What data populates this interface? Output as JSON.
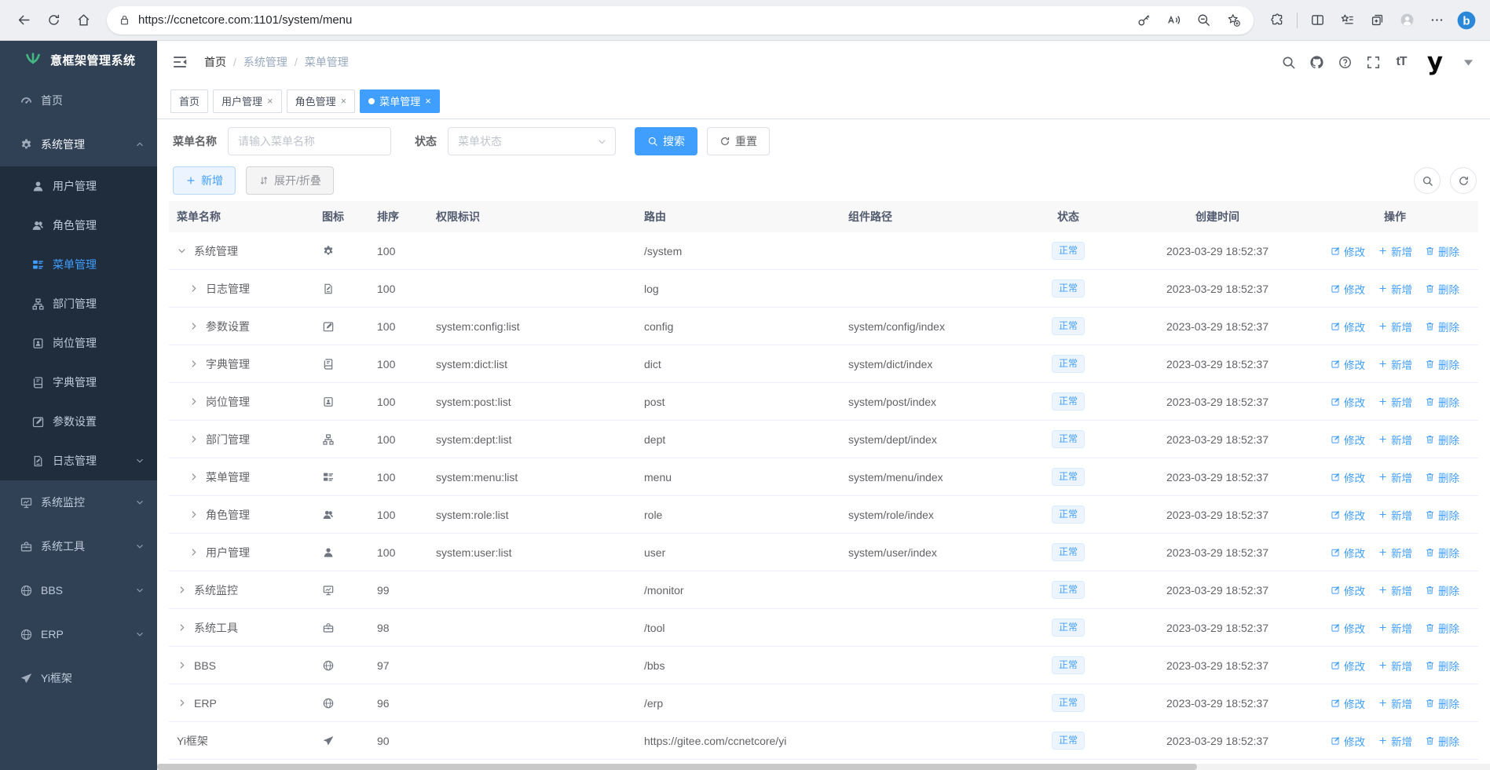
{
  "browser": {
    "url": "https://ccnetcore.com:1101/system/menu",
    "left_icons": [
      "back",
      "reload",
      "home"
    ],
    "address_icons": [
      "lock",
      "key",
      "read-aloud",
      "zoom-out",
      "add-favorite"
    ],
    "right_icons": [
      "extensions",
      "split-screen",
      "favorites",
      "collections",
      "profile",
      "more",
      "copilot"
    ]
  },
  "sidebar": {
    "logo_text": "意框架管理系统",
    "items": [
      {
        "label": "首页",
        "icon": "gauge"
      },
      {
        "label": "系统管理",
        "icon": "gear",
        "expanded": true,
        "chevron": "up",
        "children": [
          {
            "label": "用户管理",
            "icon": "user"
          },
          {
            "label": "角色管理",
            "icon": "users"
          },
          {
            "label": "菜单管理",
            "icon": "menu",
            "active": true
          },
          {
            "label": "部门管理",
            "icon": "tree"
          },
          {
            "label": "岗位管理",
            "icon": "badge"
          },
          {
            "label": "字典管理",
            "icon": "book"
          },
          {
            "label": "参数设置",
            "icon": "editsq"
          },
          {
            "label": "日志管理",
            "icon": "log",
            "chevron": "down"
          }
        ]
      },
      {
        "label": "系统监控",
        "icon": "monitor",
        "chevron": "down"
      },
      {
        "label": "系统工具",
        "icon": "toolbox",
        "chevron": "down"
      },
      {
        "label": "BBS",
        "icon": "globe",
        "chevron": "down"
      },
      {
        "label": "ERP",
        "icon": "globe",
        "chevron": "down"
      },
      {
        "label": "Yi框架",
        "icon": "send"
      }
    ]
  },
  "breadcrumb": [
    "首页",
    "系统管理",
    "菜单管理"
  ],
  "tabs": [
    {
      "label": "首页",
      "closable": false,
      "active": false
    },
    {
      "label": "用户管理",
      "closable": true,
      "active": false
    },
    {
      "label": "角色管理",
      "closable": true,
      "active": false
    },
    {
      "label": "菜单管理",
      "closable": true,
      "active": true
    }
  ],
  "filters": {
    "name_label": "菜单名称",
    "name_placeholder": "请输入菜单名称",
    "name_value": "",
    "status_label": "状态",
    "status_placeholder": "菜单状态",
    "search_label": "搜索",
    "reset_label": "重置"
  },
  "toolbar": {
    "add_label": "新增",
    "toggle_label": "展开/折叠"
  },
  "table": {
    "columns": [
      "菜单名称",
      "图标",
      "排序",
      "权限标识",
      "路由",
      "组件路径",
      "状态",
      "创建时间",
      "操作"
    ],
    "status_label": "正常",
    "actions": [
      "修改",
      "新增",
      "删除"
    ],
    "rows": [
      {
        "name": "系统管理",
        "icon": "gear",
        "level": 0,
        "arrow": "down",
        "order": "100",
        "perm": "",
        "route": "/system",
        "component": "",
        "time": "2023-03-29 18:52:37"
      },
      {
        "name": "日志管理",
        "icon": "log",
        "level": 1,
        "arrow": "right",
        "order": "100",
        "perm": "",
        "route": "log",
        "component": "",
        "time": "2023-03-29 18:52:37"
      },
      {
        "name": "参数设置",
        "icon": "editsq",
        "level": 1,
        "arrow": "right",
        "order": "100",
        "perm": "system:config:list",
        "route": "config",
        "component": "system/config/index",
        "time": "2023-03-29 18:52:37"
      },
      {
        "name": "字典管理",
        "icon": "book",
        "level": 1,
        "arrow": "right",
        "order": "100",
        "perm": "system:dict:list",
        "route": "dict",
        "component": "system/dict/index",
        "time": "2023-03-29 18:52:37"
      },
      {
        "name": "岗位管理",
        "icon": "badge",
        "level": 1,
        "arrow": "right",
        "order": "100",
        "perm": "system:post:list",
        "route": "post",
        "component": "system/post/index",
        "time": "2023-03-29 18:52:37"
      },
      {
        "name": "部门管理",
        "icon": "tree",
        "level": 1,
        "arrow": "right",
        "order": "100",
        "perm": "system:dept:list",
        "route": "dept",
        "component": "system/dept/index",
        "time": "2023-03-29 18:52:37"
      },
      {
        "name": "菜单管理",
        "icon": "menu",
        "level": 1,
        "arrow": "right",
        "order": "100",
        "perm": "system:menu:list",
        "route": "menu",
        "component": "system/menu/index",
        "time": "2023-03-29 18:52:37"
      },
      {
        "name": "角色管理",
        "icon": "users",
        "level": 1,
        "arrow": "right",
        "order": "100",
        "perm": "system:role:list",
        "route": "role",
        "component": "system/role/index",
        "time": "2023-03-29 18:52:37"
      },
      {
        "name": "用户管理",
        "icon": "user",
        "level": 1,
        "arrow": "right",
        "order": "100",
        "perm": "system:user:list",
        "route": "user",
        "component": "system/user/index",
        "time": "2023-03-29 18:52:37"
      },
      {
        "name": "系统监控",
        "icon": "monitor",
        "level": 0,
        "arrow": "right",
        "order": "99",
        "perm": "",
        "route": "/monitor",
        "component": "",
        "time": "2023-03-29 18:52:37"
      },
      {
        "name": "系统工具",
        "icon": "toolbox",
        "level": 0,
        "arrow": "right",
        "order": "98",
        "perm": "",
        "route": "/tool",
        "component": "",
        "time": "2023-03-29 18:52:37"
      },
      {
        "name": "BBS",
        "icon": "globe",
        "level": 0,
        "arrow": "right",
        "order": "97",
        "perm": "",
        "route": "/bbs",
        "component": "",
        "time": "2023-03-29 18:52:37"
      },
      {
        "name": "ERP",
        "icon": "globe",
        "level": 0,
        "arrow": "right",
        "order": "96",
        "perm": "",
        "route": "/erp",
        "component": "",
        "time": "2023-03-29 18:52:37"
      },
      {
        "name": "Yi框架",
        "icon": "send",
        "level": 0,
        "arrow": null,
        "order": "90",
        "perm": "",
        "route": "https://gitee.com/ccnetcore/yi",
        "component": "",
        "time": "2023-03-29 18:52:37"
      }
    ]
  },
  "colors": {
    "accent": "#409eff",
    "active_tab_bg": "#409eff",
    "sidebar_bg": "#304156",
    "sidebar_submenu_bg": "#1f2d3d",
    "sidebar_text": "#bfcbd9",
    "badge_bg": "#ecf5ff",
    "badge_border": "#d9ecff",
    "table_header_bg": "#f8f8f9",
    "logo_green": "#43b883"
  }
}
